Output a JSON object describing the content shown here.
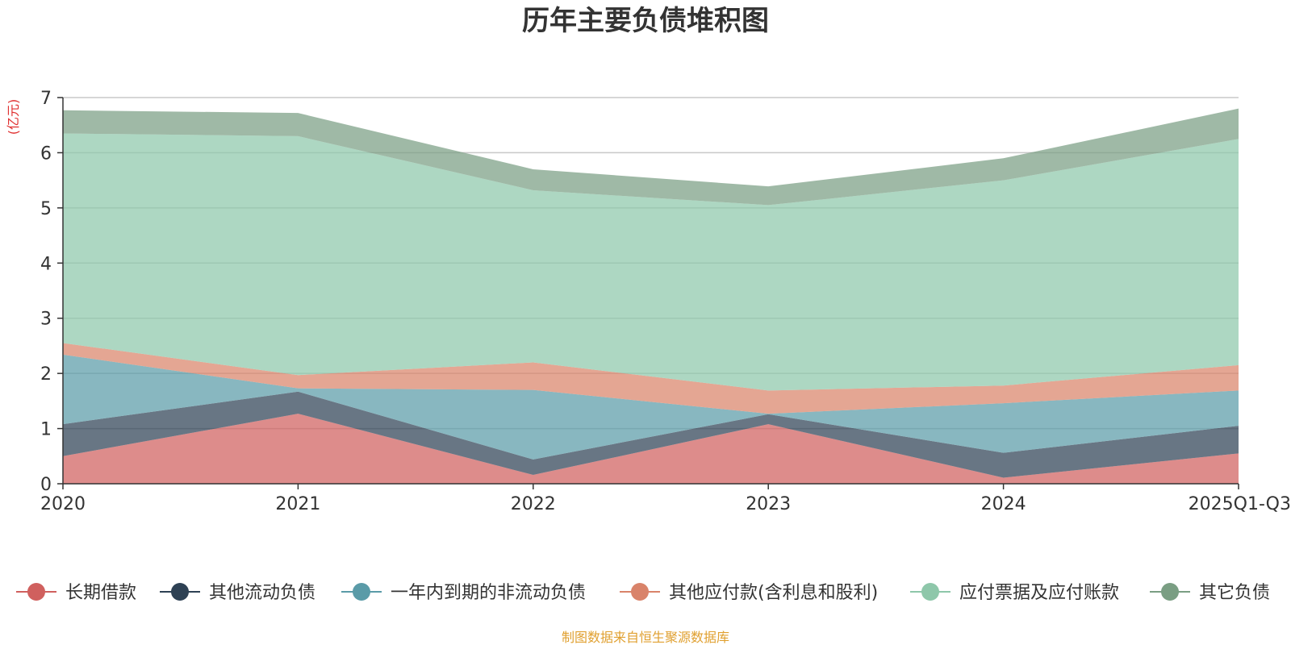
{
  "chart_data": {
    "type": "area",
    "stacked": true,
    "title": "历年主要负债堆积图",
    "unit_label": "(亿元)",
    "categories": [
      "2020",
      "2021",
      "2022",
      "2023",
      "2024",
      "2025Q1-Q3"
    ],
    "ylim": [
      0,
      7
    ],
    "yticks": [
      "0",
      "1",
      "2",
      "3",
      "4",
      "5",
      "6",
      "7"
    ],
    "grid": true,
    "legend_position": "bottom",
    "series": [
      {
        "name": "长期借款",
        "color": "#d0605e",
        "values": [
          0.5,
          1.27,
          0.16,
          1.08,
          0.11,
          0.55
        ]
      },
      {
        "name": "其他流动负债",
        "color": "#2e4154",
        "values": [
          0.58,
          0.4,
          0.28,
          0.18,
          0.45,
          0.5
        ]
      },
      {
        "name": "一年内到期的非流动负债",
        "color": "#5a9ba8",
        "values": [
          1.26,
          0.06,
          1.26,
          0.01,
          0.9,
          0.64
        ]
      },
      {
        "name": "其他应付款(含利息和股利)",
        "color": "#d9836a",
        "values": [
          0.21,
          0.24,
          0.5,
          0.42,
          0.32,
          0.46
        ]
      },
      {
        "name": "应付票据及应付账款",
        "color": "#8ec7aa",
        "values": [
          3.8,
          4.33,
          3.12,
          3.36,
          3.72,
          4.1
        ]
      },
      {
        "name": "其它负债",
        "color": "#7a9e83",
        "values": [
          0.42,
          0.42,
          0.38,
          0.34,
          0.4,
          0.55
        ]
      }
    ],
    "source_text": "制图数据来自恒生聚源数据库",
    "source_color": "#e0a030",
    "unit_color": "#e03030"
  }
}
